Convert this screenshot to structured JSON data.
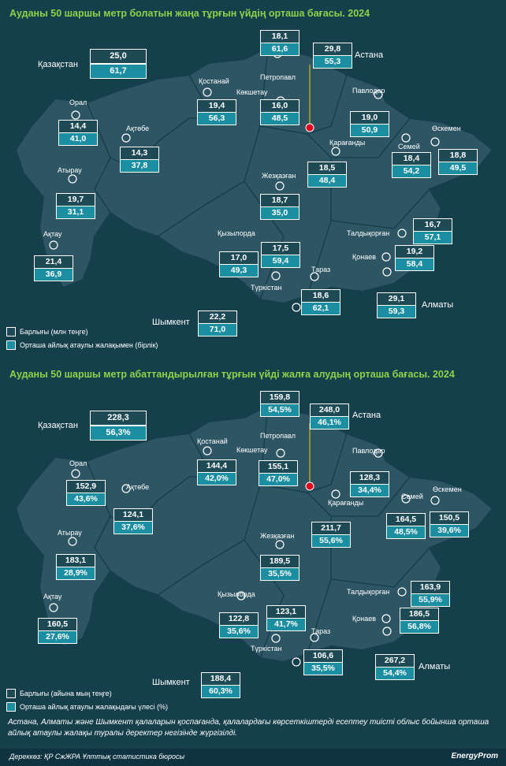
{
  "colors": {
    "background": "#163f4c",
    "title": "#8fd14a",
    "region": "#2e5563",
    "box_top": "#1e4a56",
    "box_bottom": "#1c8ea2",
    "capital_marker": "#e3001b"
  },
  "panel1": {
    "title": "Ауданы 50 шаршы метр болатын жаңа тұрғын үйдің орташа бағасы. 2024",
    "legend": [
      "Барлығы (млн теңге)",
      "Орташа айлық атаулы жалақымен (бірлік)"
    ],
    "regions": [
      {
        "name": "Қазақстан",
        "top": "25,0",
        "bot": "61,7"
      },
      {
        "name": "Петропавл",
        "top": "18,1",
        "bot": "61,6"
      },
      {
        "name": "Астана",
        "top": "29,8",
        "bot": "55,3"
      },
      {
        "name": "Қостанай",
        "top": "19,4",
        "bot": "56,3"
      },
      {
        "name": "Көкшетау",
        "top": "16,0",
        "bot": "48,5"
      },
      {
        "name": "Павлодар",
        "top": "19,0",
        "bot": "50,9"
      },
      {
        "name": "Орал",
        "top": "14,4",
        "bot": "41,0"
      },
      {
        "name": "Ақтөбе",
        "top": "14,3",
        "bot": "37,8"
      },
      {
        "name": "Семей",
        "top": "18,4",
        "bot": "54,2"
      },
      {
        "name": "Өскемен",
        "top": "18,8",
        "bot": "49,5"
      },
      {
        "name": "Қарағанды",
        "top": "18,5",
        "bot": "48,4"
      },
      {
        "name": "Атырау",
        "top": "19,7",
        "bot": "31,1"
      },
      {
        "name": "Жезқазған",
        "top": "18,7",
        "bot": "35,0"
      },
      {
        "name": "Талдықорған",
        "top": "16,7",
        "bot": "57,1"
      },
      {
        "name": "Ақтау",
        "top": "21,4",
        "bot": "36,9"
      },
      {
        "name": "Қызылорда",
        "top": "17,0",
        "bot": "49,3"
      },
      {
        "name": "Тараз",
        "top": "17,5",
        "bot": "59,4"
      },
      {
        "name": "Қонаев",
        "top": "19,2",
        "bot": "58,4"
      },
      {
        "name": "Түркістан",
        "top": "18,6",
        "bot": "62,1"
      },
      {
        "name": "Алматы",
        "top": "29,1",
        "bot": "59,3"
      },
      {
        "name": "Шымкент",
        "top": "22,2",
        "bot": "71,0"
      }
    ]
  },
  "panel2": {
    "title": "Ауданы 50 шаршы метр абаттандырылған тұрғын үйді жалға алудың орташа бағасы. 2024",
    "legend": [
      "Барлығы (айына мың теңге)",
      "Орташа айлық атаулы жалақыдағы үлесі (%)"
    ],
    "regions": [
      {
        "name": "Қазақстан",
        "top": "228,3",
        "bot": "56,3%"
      },
      {
        "name": "Петропавл",
        "top": "159,8",
        "bot": "54,5%"
      },
      {
        "name": "Астана",
        "top": "248,0",
        "bot": "46,1%"
      },
      {
        "name": "Қостанай",
        "top": "144,4",
        "bot": "42,0%"
      },
      {
        "name": "Көкшетау",
        "top": "155,1",
        "bot": "47,0%"
      },
      {
        "name": "Павлодар",
        "top": "128,3",
        "bot": "34,4%"
      },
      {
        "name": "Орал",
        "top": "152,9",
        "bot": "43,6%"
      },
      {
        "name": "Ақтөбе",
        "top": "124,1",
        "bot": "37,6%"
      },
      {
        "name": "Семей",
        "top": "164,5",
        "bot": "48,5%"
      },
      {
        "name": "Өскемен",
        "top": "150,5",
        "bot": "39,6%"
      },
      {
        "name": "Қарағанды",
        "top": "211,7",
        "bot": "55,6%"
      },
      {
        "name": "Атырау",
        "top": "183,1",
        "bot": "28,9%"
      },
      {
        "name": "Жезқазған",
        "top": "189,5",
        "bot": "35,5%"
      },
      {
        "name": "Талдықорған",
        "top": "163,9",
        "bot": "55,9%"
      },
      {
        "name": "Ақтау",
        "top": "160,5",
        "bot": "27,6%"
      },
      {
        "name": "Қызылорда",
        "top": "122,8",
        "bot": "35,6%"
      },
      {
        "name": "Тараз",
        "top": "123,1",
        "bot": "41,7%"
      },
      {
        "name": "Қонаев",
        "top": "186,5",
        "bot": "56,8%"
      },
      {
        "name": "Түркістан",
        "top": "106,6",
        "bot": "35,5%"
      },
      {
        "name": "Алматы",
        "top": "267,2",
        "bot": "54,4%"
      },
      {
        "name": "Шымкент",
        "top": "188,4",
        "bot": "60,3%"
      }
    ]
  },
  "note": "Астана, Алматы және Шымкент қалаларын қоспағанда, қалалардағы көрсеткіштерді есептеу тиісті облыс бойынша орташа айлық атаулы жалақы туралы деректер негізінде жүргізілді.",
  "source": "Дереккөз: ҚР СжЖРА Ұлттық статистика бюросы",
  "brand": "EnergyProm"
}
